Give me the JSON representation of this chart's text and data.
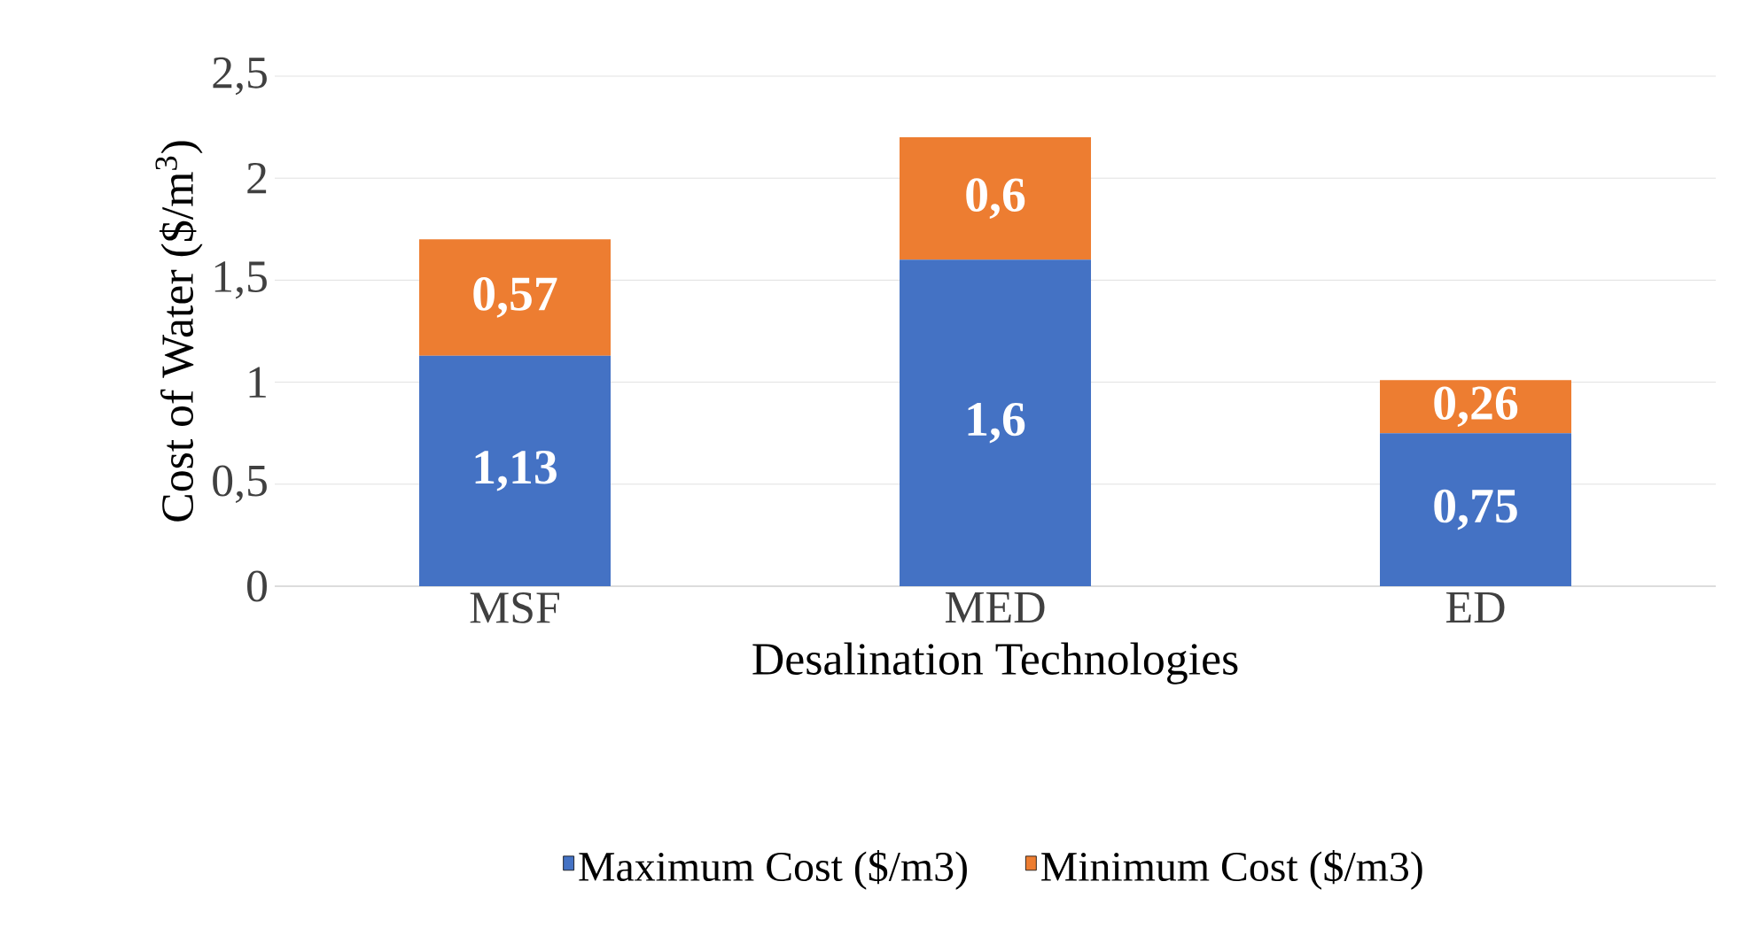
{
  "chart_data": {
    "type": "bar",
    "stacked": true,
    "xlabel": "Desalination Technologies",
    "ylabel": "Cost of  Water ($/m$^{3}$)",
    "categories": [
      "MSF",
      "MED",
      "ED"
    ],
    "series": [
      {
        "name": "Maximum Cost ($/m3)",
        "color": "#4472c4",
        "values": [
          1.13,
          1.6,
          0.75
        ],
        "value_labels": [
          "1,13",
          "1,6",
          "0,75"
        ]
      },
      {
        "name": "Minimum Cost ($/m3)",
        "color": "#ed7d31",
        "values": [
          0.57,
          0.6,
          0.26
        ],
        "value_labels": [
          "0,57",
          "0,6",
          "0,26"
        ]
      }
    ],
    "ylim": [
      0,
      2.5
    ],
    "yticks": [
      0,
      {
        "value": 0.5,
        "label": "0,5"
      },
      1,
      {
        "value": 1.5,
        "label": "1,5"
      },
      2,
      {
        "value": 2.5,
        "label": "2,5"
      }
    ],
    "grid": "y",
    "legend": "bottom"
  }
}
